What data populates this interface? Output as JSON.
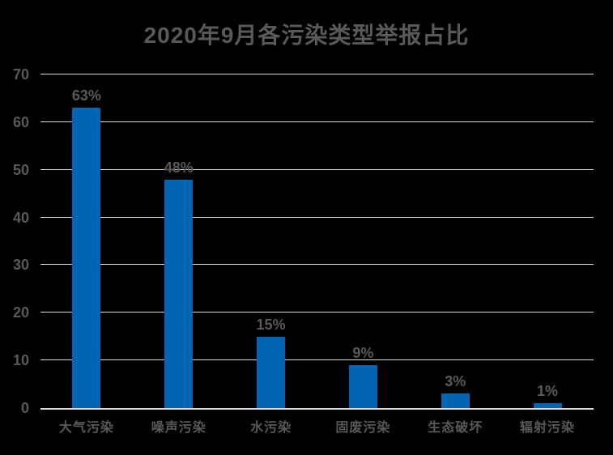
{
  "chart_data": {
    "type": "bar",
    "title": "2020年9月各污染类型举报占比",
    "categories": [
      "大气污染",
      "噪声污染",
      "水污染",
      "固废污染",
      "生态破坏",
      "辐射污染"
    ],
    "values": [
      63,
      48,
      15,
      9,
      3,
      1
    ],
    "value_labels": [
      "63%",
      "48%",
      "15%",
      "9%",
      "3%",
      "1%"
    ],
    "ylim": [
      0,
      70
    ],
    "yticks": [
      0,
      10,
      20,
      30,
      40,
      50,
      60,
      70
    ],
    "xlabel": "",
    "ylabel": "",
    "grid": "horizontal",
    "legend": "none",
    "colors": {
      "background": "#000000",
      "bar": "#0066b3",
      "gridline": "#d9d9d9",
      "baseline": "#dcdcdc",
      "text": "#595959"
    }
  }
}
